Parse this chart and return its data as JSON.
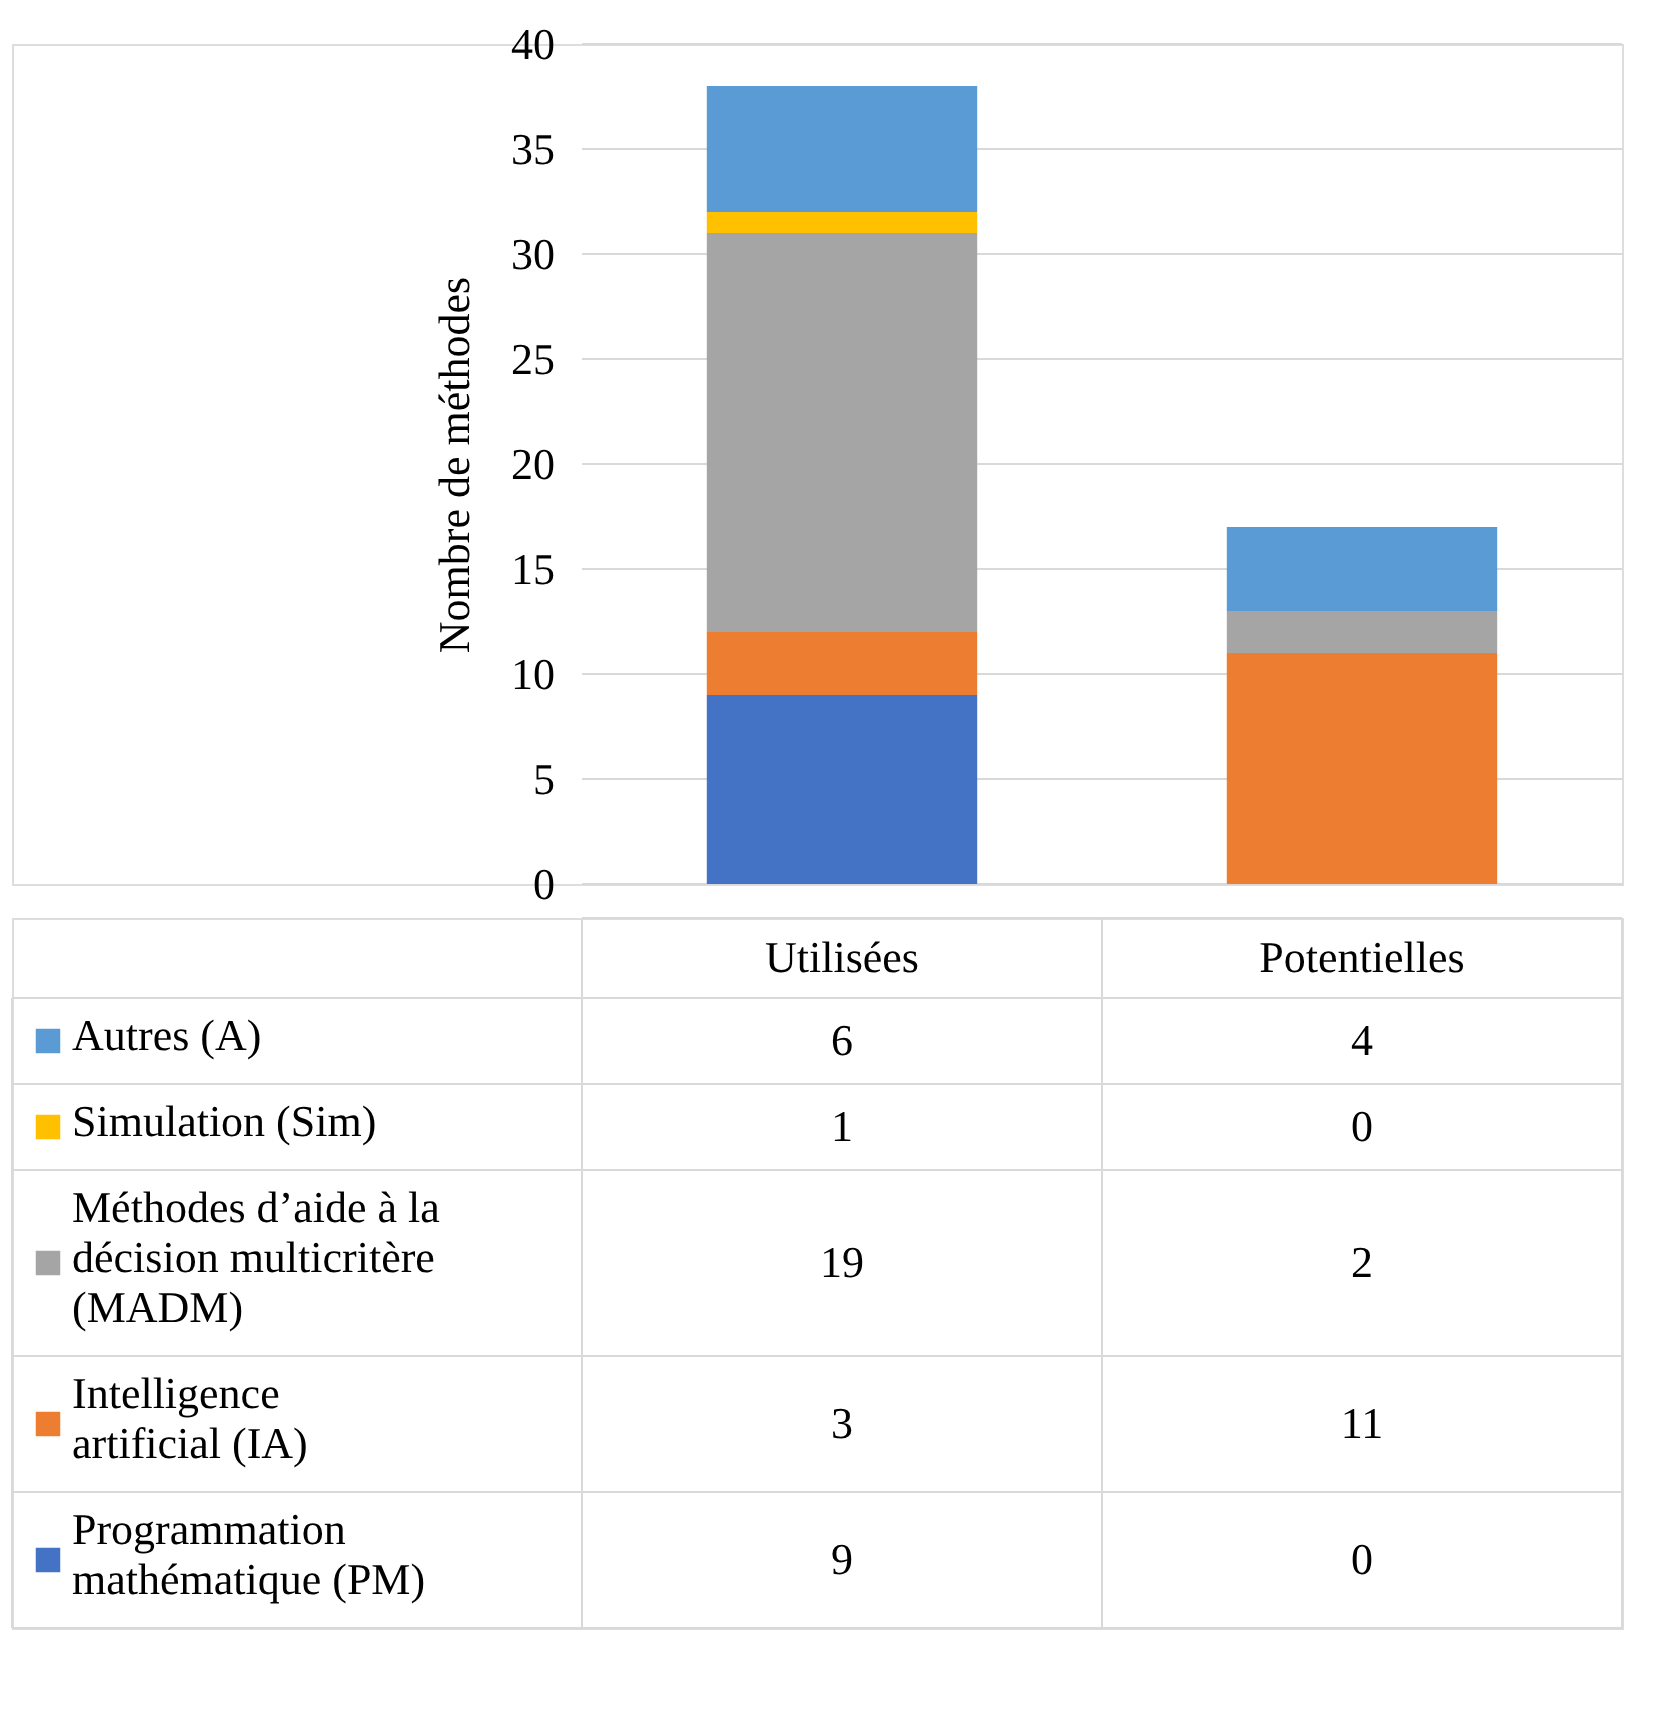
{
  "chart_data": {
    "type": "bar",
    "stacked": true,
    "ylabel": "Nombre de méthodes",
    "categories": [
      "Utilisées",
      "Potentielles"
    ],
    "series": [
      {
        "name": "Programmation mathématique (PM)",
        "color": "#4472c4",
        "values": [
          9,
          0
        ]
      },
      {
        "name": "Intelligence artificial (IA)",
        "color": "#ed7d31",
        "values": [
          3,
          11
        ]
      },
      {
        "name": "Méthodes d’aide à la décision multicritère (MADM)",
        "color": "#a5a5a5",
        "values": [
          19,
          2
        ]
      },
      {
        "name": "Simulation (Sim)",
        "color": "#ffc000",
        "values": [
          1,
          0
        ]
      },
      {
        "name": "Autres (A)",
        "color": "#5b9bd5",
        "values": [
          6,
          4
        ]
      }
    ],
    "ylim": [
      0,
      40
    ],
    "yticks": [
      0,
      5,
      10,
      15,
      20,
      25,
      30,
      35,
      40
    ],
    "grid": "y",
    "data_labels": true,
    "legend": "bottom"
  }
}
